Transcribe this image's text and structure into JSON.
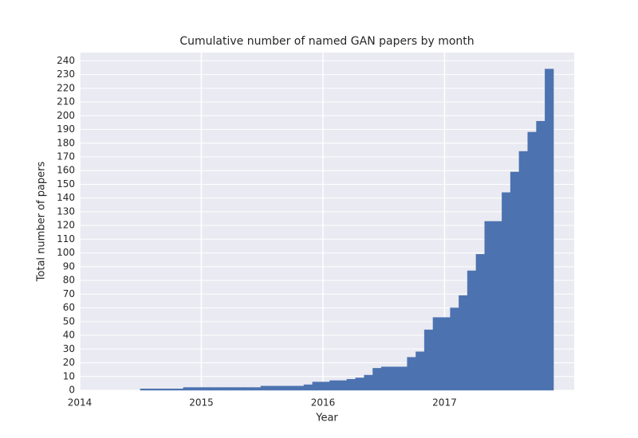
{
  "chart_data": {
    "type": "histogram",
    "title": "Cumulative number of named GAN papers by month",
    "xlabel": "Year",
    "ylabel": "Total number of papers",
    "color": "#4c72b0",
    "grid": true,
    "bins": [
      2014.498,
      2014.569,
      2014.64,
      2014.71,
      2014.781,
      2014.852,
      2014.923,
      2014.994,
      2015.064,
      2015.135,
      2015.206,
      2015.277,
      2015.348,
      2015.418,
      2015.489,
      2015.56,
      2015.631,
      2015.702,
      2015.772,
      2015.843,
      2015.914,
      2015.985,
      2016.056,
      2016.126,
      2016.197,
      2016.268,
      2016.339,
      2016.41,
      2016.48,
      2016.551,
      2016.622,
      2016.693,
      2016.764,
      2016.834,
      2016.905,
      2016.976,
      2017.047,
      2017.118,
      2017.188,
      2017.259,
      2017.33,
      2017.401,
      2017.472,
      2017.542,
      2017.613,
      2017.684,
      2017.755,
      2017.826,
      2017.896
    ],
    "values": [
      1,
      1,
      1,
      1,
      1,
      2,
      2,
      2,
      2,
      2,
      2,
      2,
      2,
      2,
      3,
      3,
      3,
      3,
      3,
      4,
      6,
      6,
      7,
      7,
      8,
      9,
      11,
      16,
      17,
      17,
      17,
      24,
      28,
      44,
      53,
      53,
      60,
      69,
      87,
      99,
      123,
      123,
      144,
      159,
      174,
      188,
      196,
      234
    ],
    "xlim": [
      2014,
      2018.066
    ],
    "xticks": [
      2014,
      2015,
      2016,
      2017
    ],
    "ylim": [
      0,
      246
    ],
    "yticks": [
      0,
      10,
      20,
      30,
      40,
      50,
      60,
      70,
      80,
      90,
      100,
      110,
      120,
      130,
      140,
      150,
      160,
      170,
      180,
      190,
      200,
      210,
      220,
      230,
      240
    ]
  }
}
